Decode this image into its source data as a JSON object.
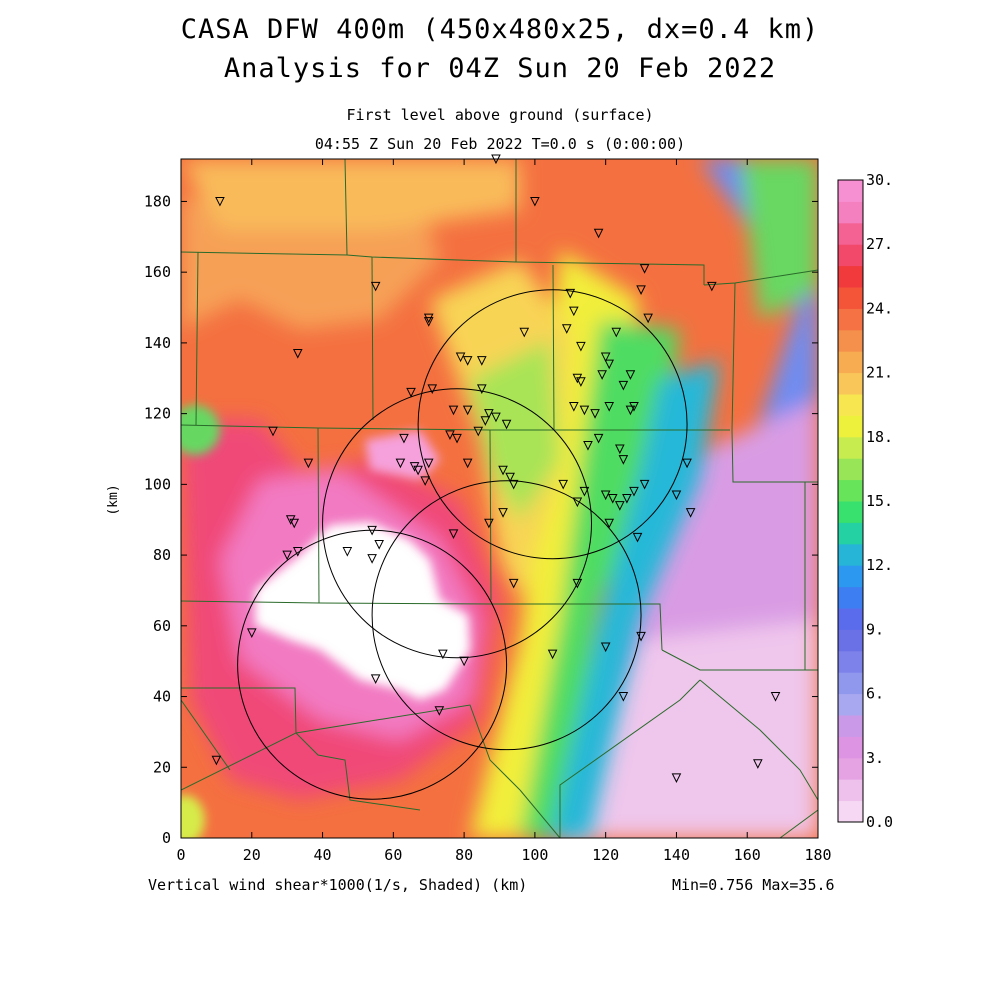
{
  "title_line1": "CASA DFW 400m (450x480x25, dx=0.4 km)",
  "title_line2": "Analysis for 04Z Sun 20 Feb 2022",
  "subtitle_line1": "First level above ground (surface)",
  "subtitle_line2": "04:55 Z Sun 20 Feb 2022    T=0.0 s (0:00:00)",
  "x_axis_label": "Vertical wind shear*1000(1/s, Shaded)  (km)",
  "y_axis_label": "(km)",
  "min_max_text": "Min=0.756 Max=35.6",
  "x_ticks": [
    "0",
    "20",
    "40",
    "60",
    "80",
    "100",
    "120",
    "140",
    "160",
    "180"
  ],
  "y_ticks": [
    "0",
    "20",
    "40",
    "60",
    "80",
    "100",
    "120",
    "140",
    "160",
    "180"
  ],
  "colorbar": {
    "labels": [
      "0.0",
      "3.",
      "6.",
      "9.",
      "12.",
      "15.",
      "18.",
      "21.",
      "24.",
      "27.",
      "30."
    ],
    "colors": [
      "#f6d8f4",
      "#eec0ec",
      "#e6a3e4",
      "#dd94e2",
      "#ca9ae8",
      "#a8a8f0",
      "#9098ee",
      "#7d82ea",
      "#6a70e6",
      "#5a6cec",
      "#3d7ff2",
      "#2c98f0",
      "#26b5d6",
      "#23d1a2",
      "#38e06d",
      "#68e45b",
      "#98e657",
      "#c6ec50",
      "#eef13c",
      "#f8e650",
      "#f9c65a",
      "#f8ac52",
      "#f58f4c",
      "#f57244",
      "#f45438",
      "#f03a3c",
      "#f2486a",
      "#f46294",
      "#f580c0",
      "#f790d2"
    ]
  },
  "map": {
    "x_range_km": [
      0,
      180
    ],
    "y_range_km": [
      0,
      192
    ],
    "radar_circles_km": [
      {
        "cx": 105,
        "cy": 117,
        "r": 38
      },
      {
        "cx": 78,
        "cy": 89,
        "r": 38
      },
      {
        "cx": 92,
        "cy": 63,
        "r": 38
      },
      {
        "cx": 54,
        "cy": 49,
        "r": 38
      }
    ],
    "stations_km": [
      [
        89,
        192
      ],
      [
        11,
        180
      ],
      [
        100,
        180
      ],
      [
        118,
        171
      ],
      [
        131,
        161
      ],
      [
        55,
        156
      ],
      [
        150,
        156
      ],
      [
        110,
        154
      ],
      [
        130,
        155
      ],
      [
        70,
        147
      ],
      [
        70,
        146
      ],
      [
        111,
        149
      ],
      [
        132,
        147
      ],
      [
        109,
        144
      ],
      [
        97,
        143
      ],
      [
        123,
        143
      ],
      [
        33,
        137
      ],
      [
        79,
        136
      ],
      [
        81,
        135
      ],
      [
        85,
        135
      ],
      [
        113,
        139
      ],
      [
        120,
        136
      ],
      [
        121,
        134
      ],
      [
        119,
        131
      ],
      [
        112,
        130
      ],
      [
        127,
        131
      ],
      [
        125,
        128
      ],
      [
        113,
        129
      ],
      [
        65,
        126
      ],
      [
        71,
        127
      ],
      [
        85,
        127
      ],
      [
        77,
        121
      ],
      [
        81,
        121
      ],
      [
        87,
        120
      ],
      [
        89,
        119
      ],
      [
        86,
        118
      ],
      [
        111,
        122
      ],
      [
        114,
        121
      ],
      [
        117,
        120
      ],
      [
        121,
        122
      ],
      [
        127,
        121
      ],
      [
        128,
        122
      ],
      [
        92,
        117
      ],
      [
        76,
        114
      ],
      [
        78,
        113
      ],
      [
        84,
        115
      ],
      [
        26,
        115
      ],
      [
        63,
        113
      ],
      [
        118,
        113
      ],
      [
        115,
        111
      ],
      [
        124,
        110
      ],
      [
        125,
        107
      ],
      [
        36,
        106
      ],
      [
        62,
        106
      ],
      [
        70,
        106
      ],
      [
        81,
        106
      ],
      [
        143,
        106
      ],
      [
        66,
        105
      ],
      [
        67,
        104
      ],
      [
        91,
        104
      ],
      [
        93,
        102
      ],
      [
        69,
        101
      ],
      [
        94,
        100
      ],
      [
        108,
        100
      ],
      [
        131,
        100
      ],
      [
        114,
        98
      ],
      [
        128,
        98
      ],
      [
        120,
        97
      ],
      [
        126,
        96
      ],
      [
        140,
        97
      ],
      [
        122,
        96
      ],
      [
        112,
        95
      ],
      [
        124,
        94
      ],
      [
        144,
        92
      ],
      [
        91,
        92
      ],
      [
        31,
        90
      ],
      [
        32,
        89
      ],
      [
        87,
        89
      ],
      [
        121,
        89
      ],
      [
        54,
        87
      ],
      [
        77,
        86
      ],
      [
        129,
        85
      ],
      [
        56,
        83
      ],
      [
        47,
        81
      ],
      [
        30,
        80
      ],
      [
        33,
        81
      ],
      [
        54,
        79
      ],
      [
        94,
        72
      ],
      [
        112,
        72
      ],
      [
        20,
        58
      ],
      [
        74,
        52
      ],
      [
        80,
        50
      ],
      [
        130,
        57
      ],
      [
        120,
        54
      ],
      [
        105,
        52
      ],
      [
        55,
        45
      ],
      [
        125,
        40
      ],
      [
        73,
        36
      ],
      [
        168,
        40
      ],
      [
        10,
        22
      ],
      [
        140,
        17
      ],
      [
        163,
        21
      ]
    ]
  }
}
